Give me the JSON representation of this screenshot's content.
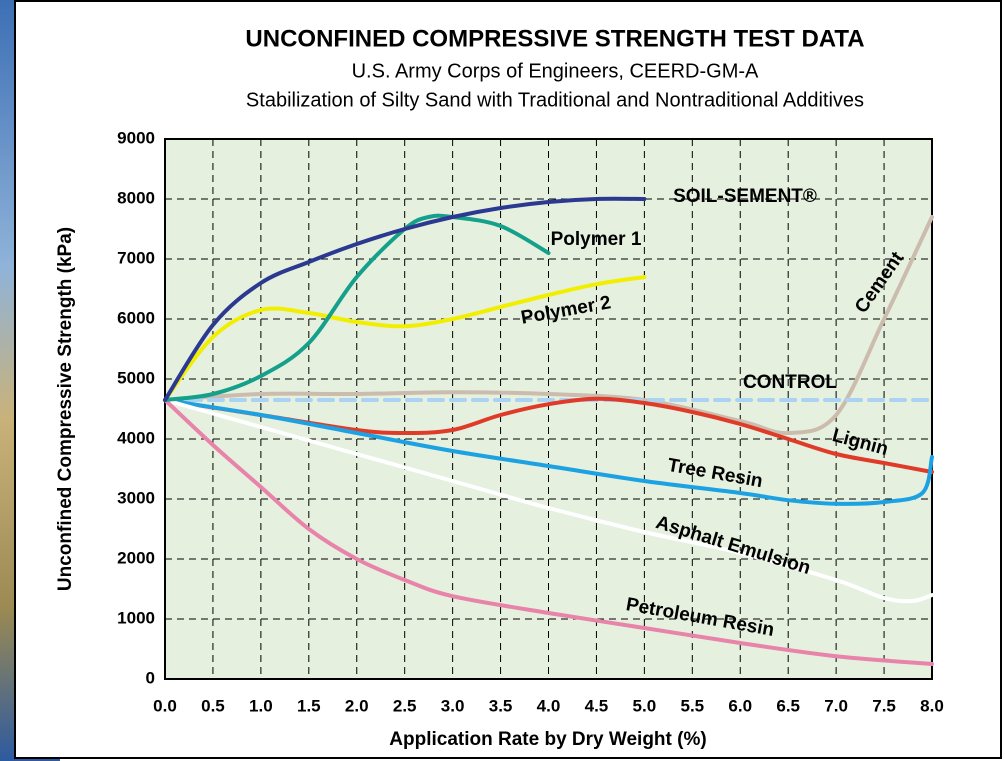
{
  "chart_data": {
    "type": "line",
    "title": "UNCONFINED COMPRESSIVE STRENGTH TEST DATA",
    "subtitle": "U.S. Army Corps of Engineers, CEERD-GM-A",
    "subtitle2": "Stabilization of Silty Sand with Traditional and Nontraditional Additives",
    "x_label": "Application Rate by Dry Weight (%)",
    "y_label": "Unconfined Compressive Strength (kPa)",
    "xlim": [
      0,
      8
    ],
    "ylim": [
      0,
      9000
    ],
    "xticks": [
      {
        "value": 0,
        "label": "0.0"
      },
      0.5,
      {
        "value": 1,
        "label": "1.0"
      },
      1.5,
      {
        "value": 2,
        "label": "2.0"
      },
      2.5,
      {
        "value": 3,
        "label": "3.0"
      },
      3.5,
      {
        "value": 4,
        "label": "4.0"
      },
      4.5,
      {
        "value": 5,
        "label": "5.0"
      },
      5.5,
      {
        "value": 6,
        "label": "6.0"
      },
      6.5,
      {
        "value": 7,
        "label": "7.0"
      },
      7.5,
      {
        "value": 8,
        "label": "8.0"
      }
    ],
    "yticks": [
      0,
      1000,
      2000,
      3000,
      4000,
      5000,
      6000,
      7000,
      8000,
      9000
    ],
    "grid": true,
    "background": "#e6f0df",
    "series": [
      {
        "name": "SOIL-SEMENT®",
        "color": "#2b3990",
        "x": [
          0,
          0.5,
          1,
          1.5,
          2,
          2.5,
          3,
          3.5,
          4,
          4.5,
          5
        ],
        "values": [
          4650,
          5900,
          6600,
          6950,
          7250,
          7500,
          7700,
          7850,
          7950,
          8000,
          8000
        ]
      },
      {
        "name": "Polymer 1",
        "color": "#14a08a",
        "x": [
          0,
          0.5,
          1,
          1.5,
          2,
          2.5,
          2.75,
          3,
          3.5,
          4
        ],
        "values": [
          4650,
          4750,
          5050,
          5600,
          6700,
          7500,
          7700,
          7700,
          7550,
          7100
        ]
      },
      {
        "name": "Polymer 2",
        "color": "#f2ee00",
        "x": [
          0,
          0.5,
          1,
          1.5,
          2,
          2.5,
          3,
          3.5,
          4,
          4.5,
          5
        ],
        "values": [
          4650,
          5700,
          6150,
          6100,
          5950,
          5880,
          6000,
          6200,
          6400,
          6580,
          6700
        ]
      },
      {
        "name": "Cement",
        "color": "#cbbcae",
        "x": [
          0,
          1,
          2,
          3,
          4,
          5,
          6,
          6.5,
          7,
          7.5,
          8
        ],
        "values": [
          4650,
          4750,
          4750,
          4780,
          4750,
          4650,
          4300,
          4100,
          4400,
          6000,
          7700
        ]
      },
      {
        "name": "CONTROL",
        "color": "#aad2f2",
        "dashed": true,
        "x": [
          0,
          8
        ],
        "values": [
          4650,
          4650
        ]
      },
      {
        "name": "Lignin",
        "color": "#e03a28",
        "x": [
          0,
          1,
          2,
          2.5,
          3,
          3.5,
          4,
          4.5,
          5,
          5.5,
          6,
          6.5,
          7,
          7.5,
          8
        ],
        "values": [
          4650,
          4400,
          4150,
          4100,
          4150,
          4400,
          4580,
          4670,
          4600,
          4450,
          4250,
          4000,
          3750,
          3600,
          3450
        ]
      },
      {
        "name": "Tree Resin",
        "color": "#1ca2e2",
        "x": [
          0,
          1,
          2,
          3,
          4,
          5,
          6,
          6.5,
          7,
          7.5,
          7.9,
          8
        ],
        "values": [
          4650,
          4400,
          4100,
          3800,
          3550,
          3300,
          3100,
          2980,
          2920,
          2950,
          3100,
          3700
        ]
      },
      {
        "name": "Asphalt Emulsion",
        "color": "#ffffff",
        "x": [
          0,
          1,
          2,
          3,
          4,
          5,
          6,
          7,
          7.5,
          7.8,
          8
        ],
        "values": [
          4650,
          4200,
          3750,
          3300,
          2850,
          2450,
          2100,
          1650,
          1350,
          1300,
          1400
        ]
      },
      {
        "name": "Petroleum Resin",
        "color": "#e883a9",
        "x": [
          0,
          0.5,
          1,
          1.5,
          2,
          2.5,
          3,
          4,
          5,
          6,
          7,
          8
        ],
        "values": [
          4650,
          3900,
          3200,
          2500,
          2000,
          1650,
          1380,
          1100,
          850,
          600,
          380,
          250
        ]
      }
    ]
  }
}
